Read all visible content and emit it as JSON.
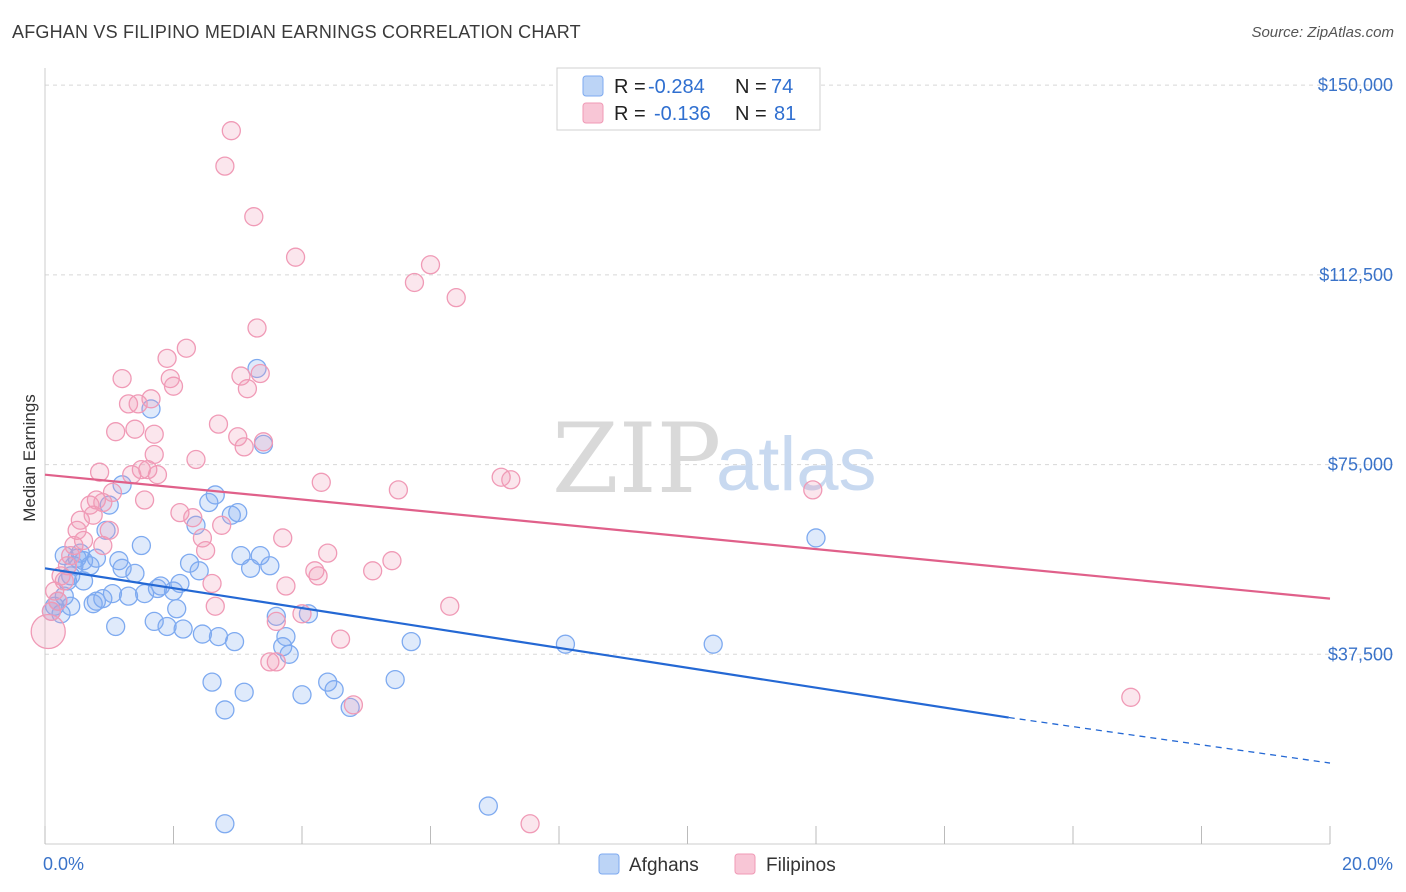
{
  "title": "AFGHAN VS FILIPINO MEDIAN EARNINGS CORRELATION CHART",
  "source": "Source: ZipAtlas.com",
  "watermark": {
    "zip": "ZIP",
    "atlas": "atlas"
  },
  "colors": {
    "afghans": "#7eaaf0",
    "afghans_line": "#2468d4",
    "filipinos": "#f09ab6",
    "filipinos_line": "#e0608a",
    "grid": "#d8d8d8",
    "axis_text": "#3a73c9"
  },
  "legend": {
    "rows": [
      {
        "r_label": "R =",
        "r_value": "-0.284",
        "n_label": "N =",
        "n_value": "74"
      },
      {
        "r_label": "R =",
        "r_value": "-0.136",
        "n_label": "N =",
        "n_value": "81"
      }
    ]
  },
  "chart_data": {
    "type": "scatter",
    "title": "AFGHAN VS FILIPINO MEDIAN EARNINGS CORRELATION CHART",
    "xlabel": "",
    "ylabel": "Median Earnings",
    "xlim": [
      0,
      20
    ],
    "ylim": [
      0,
      153000
    ],
    "x_tick_labels": [
      "0.0%",
      "20.0%"
    ],
    "y_ticks": [
      37500,
      75000,
      112500,
      150000
    ],
    "y_tick_labels": [
      "$37,500",
      "$75,000",
      "$112,500",
      "$150,000"
    ],
    "grid": true,
    "legend_position": "top-center",
    "series": [
      {
        "name": "Afghans",
        "r": -0.284,
        "n": 74,
        "trend": {
          "x0": 0,
          "y0": 54500,
          "x1": 15.0,
          "y1": 25000,
          "x_dashed_end": 20,
          "y_dashed_end": 16000
        },
        "points": [
          [
            0.1,
            46000
          ],
          [
            0.15,
            47000
          ],
          [
            0.2,
            48000
          ],
          [
            0.25,
            45500
          ],
          [
            0.3,
            49000
          ],
          [
            0.35,
            52000
          ],
          [
            0.4,
            53000
          ],
          [
            0.45,
            55000
          ],
          [
            0.5,
            56500
          ],
          [
            0.55,
            57500
          ],
          [
            0.6,
            56000
          ],
          [
            0.7,
            55000
          ],
          [
            0.75,
            47500
          ],
          [
            0.8,
            48000
          ],
          [
            0.9,
            48500
          ],
          [
            0.95,
            62000
          ],
          [
            1.05,
            49500
          ],
          [
            1.1,
            43000
          ],
          [
            1.15,
            56000
          ],
          [
            1.2,
            54500
          ],
          [
            1.3,
            49000
          ],
          [
            1.4,
            53500
          ],
          [
            1.5,
            59000
          ],
          [
            1.55,
            49500
          ],
          [
            1.65,
            86000
          ],
          [
            1.7,
            44000
          ],
          [
            1.75,
            50500
          ],
          [
            1.8,
            51000
          ],
          [
            1.9,
            43000
          ],
          [
            2.0,
            50000
          ],
          [
            2.05,
            46500
          ],
          [
            2.1,
            51500
          ],
          [
            2.15,
            42500
          ],
          [
            2.25,
            55500
          ],
          [
            2.35,
            63000
          ],
          [
            2.4,
            54000
          ],
          [
            2.45,
            41500
          ],
          [
            2.55,
            67500
          ],
          [
            2.6,
            32000
          ],
          [
            2.65,
            69000
          ],
          [
            2.7,
            41000
          ],
          [
            2.8,
            26500
          ],
          [
            2.9,
            65000
          ],
          [
            2.95,
            40000
          ],
          [
            3.0,
            65500
          ],
          [
            3.05,
            57000
          ],
          [
            3.1,
            30000
          ],
          [
            3.2,
            54500
          ],
          [
            3.3,
            94000
          ],
          [
            3.35,
            57000
          ],
          [
            3.4,
            79000
          ],
          [
            3.5,
            55000
          ],
          [
            3.6,
            45000
          ],
          [
            3.7,
            39000
          ],
          [
            3.75,
            41000
          ],
          [
            3.8,
            37500
          ],
          [
            4.0,
            29500
          ],
          [
            4.1,
            45500
          ],
          [
            4.4,
            32000
          ],
          [
            4.5,
            30500
          ],
          [
            4.75,
            27000
          ],
          [
            5.45,
            32500
          ],
          [
            5.7,
            40000
          ],
          [
            6.9,
            7500
          ],
          [
            8.1,
            39500
          ],
          [
            10.4,
            39500
          ],
          [
            12.0,
            60500
          ],
          [
            2.8,
            4000
          ],
          [
            1.0,
            67000
          ],
          [
            1.2,
            71000
          ],
          [
            0.8,
            56500
          ],
          [
            0.6,
            52000
          ],
          [
            0.3,
            57000
          ],
          [
            0.4,
            47000
          ]
        ]
      },
      {
        "name": "Filipinos",
        "r": -0.136,
        "n": 81,
        "trend": {
          "x0": 0,
          "y0": 73000,
          "x1": 20,
          "y1": 48500
        },
        "points": [
          [
            0.05,
            42000
          ],
          [
            0.1,
            46000
          ],
          [
            0.15,
            50000
          ],
          [
            0.2,
            48000
          ],
          [
            0.3,
            52000
          ],
          [
            0.35,
            55000
          ],
          [
            0.4,
            57000
          ],
          [
            0.45,
            59000
          ],
          [
            0.5,
            62000
          ],
          [
            0.55,
            64000
          ],
          [
            0.6,
            60000
          ],
          [
            0.7,
            67000
          ],
          [
            0.75,
            65000
          ],
          [
            0.8,
            68000
          ],
          [
            0.85,
            73500
          ],
          [
            0.9,
            67500
          ],
          [
            1.0,
            62000
          ],
          [
            1.05,
            69500
          ],
          [
            1.1,
            81500
          ],
          [
            1.2,
            92000
          ],
          [
            1.3,
            87000
          ],
          [
            1.35,
            73000
          ],
          [
            1.4,
            82000
          ],
          [
            1.45,
            87000
          ],
          [
            1.5,
            74000
          ],
          [
            1.55,
            68000
          ],
          [
            1.6,
            74000
          ],
          [
            1.65,
            88000
          ],
          [
            1.7,
            81000
          ],
          [
            1.75,
            73000
          ],
          [
            1.9,
            96000
          ],
          [
            1.95,
            92000
          ],
          [
            2.0,
            90500
          ],
          [
            2.1,
            65500
          ],
          [
            2.2,
            98000
          ],
          [
            2.3,
            64500
          ],
          [
            2.35,
            76000
          ],
          [
            2.45,
            60500
          ],
          [
            2.5,
            58000
          ],
          [
            2.6,
            51500
          ],
          [
            2.65,
            47000
          ],
          [
            2.7,
            83000
          ],
          [
            2.75,
            63000
          ],
          [
            2.8,
            134000
          ],
          [
            2.9,
            141000
          ],
          [
            3.0,
            80500
          ],
          [
            3.05,
            92500
          ],
          [
            3.1,
            78500
          ],
          [
            3.15,
            90000
          ],
          [
            3.25,
            124000
          ],
          [
            3.3,
            102000
          ],
          [
            3.35,
            93000
          ],
          [
            3.4,
            79500
          ],
          [
            3.5,
            36000
          ],
          [
            3.6,
            44000
          ],
          [
            3.7,
            60500
          ],
          [
            3.75,
            51000
          ],
          [
            3.9,
            116000
          ],
          [
            4.0,
            45500
          ],
          [
            4.2,
            54000
          ],
          [
            4.3,
            71500
          ],
          [
            4.4,
            57500
          ],
          [
            4.6,
            40500
          ],
          [
            4.8,
            27500
          ],
          [
            5.1,
            54000
          ],
          [
            5.4,
            56000
          ],
          [
            5.5,
            70000
          ],
          [
            5.75,
            111000
          ],
          [
            6.0,
            114500
          ],
          [
            6.3,
            47000
          ],
          [
            6.4,
            108000
          ],
          [
            7.1,
            72500
          ],
          [
            7.25,
            72000
          ],
          [
            7.55,
            4000
          ],
          [
            11.95,
            70000
          ],
          [
            16.9,
            29000
          ],
          [
            1.7,
            77000
          ],
          [
            0.9,
            59000
          ],
          [
            0.25,
            53000
          ],
          [
            3.6,
            36000
          ],
          [
            4.25,
            53000
          ]
        ]
      }
    ]
  },
  "bottom_legend": [
    {
      "name": "Afghans"
    },
    {
      "name": "Filipinos"
    }
  ]
}
